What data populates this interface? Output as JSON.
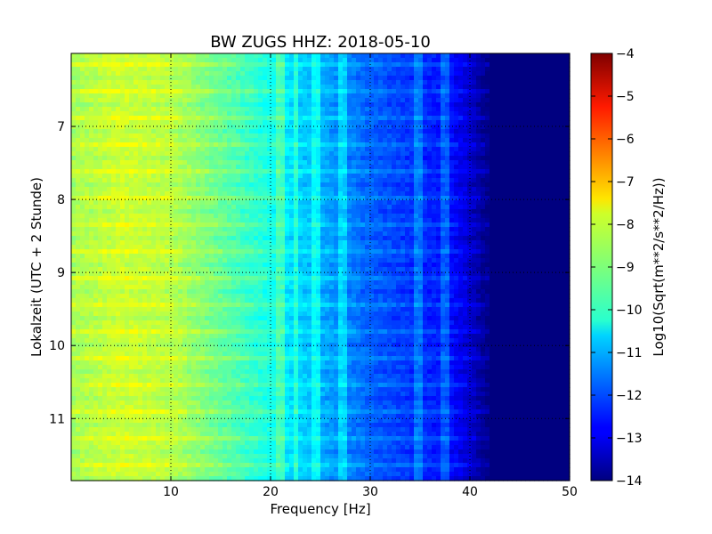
{
  "chart_data": {
    "type": "heatmap",
    "title": "BW ZUGS HHZ: 2018-05-10",
    "xlabel": "Frequency [Hz]",
    "ylabel": "Lokalzeit (UTC + 2 Stunde)",
    "xlim": [
      0,
      50
    ],
    "ylim": [
      11.85,
      6.0
    ],
    "y_inverted": true,
    "grid": true,
    "x_ticks": [
      {
        "value": 10,
        "label": "10"
      },
      {
        "value": 20,
        "label": "20"
      },
      {
        "value": 30,
        "label": "30"
      },
      {
        "value": 40,
        "label": "40"
      },
      {
        "value": 50,
        "label": "50"
      }
    ],
    "y_ticks": [
      {
        "value": 7,
        "label": "7"
      },
      {
        "value": 8,
        "label": "8"
      },
      {
        "value": 9,
        "label": "9"
      },
      {
        "value": 10,
        "label": "10"
      },
      {
        "value": 11,
        "label": "11"
      }
    ],
    "colormap": "jet",
    "colorbar": {
      "label": "Log10(Sqrt(m**2/s**2/Hz))",
      "range": [
        -14,
        -4
      ],
      "ticks": [
        {
          "value": -4,
          "label": "−4"
        },
        {
          "value": -5,
          "label": "−5"
        },
        {
          "value": -6,
          "label": "−6"
        },
        {
          "value": -7,
          "label": "−7"
        },
        {
          "value": -8,
          "label": "−8"
        },
        {
          "value": -9,
          "label": "−9"
        },
        {
          "value": -10,
          "label": "−10"
        },
        {
          "value": -11,
          "label": "−11"
        },
        {
          "value": -12,
          "label": "−12"
        },
        {
          "value": -13,
          "label": "−13"
        },
        {
          "value": -14,
          "label": "−14"
        }
      ]
    },
    "spectrum_profile": {
      "frequency_hz": [
        0,
        5,
        10,
        15,
        20,
        22,
        25,
        30,
        35,
        38,
        40,
        42,
        50
      ],
      "log_amplitude": [
        -8.6,
        -8.2,
        -8.4,
        -9.2,
        -10.0,
        -10.5,
        -11.0,
        -11.8,
        -12.3,
        -12.6,
        -13.2,
        -14.0,
        -14.0
      ]
    },
    "spectral_lines_hz": [
      21.0,
      22.5,
      24.2,
      24.7,
      27.3,
      34.8,
      37.5
    ],
    "cutoff_hz": 42
  }
}
